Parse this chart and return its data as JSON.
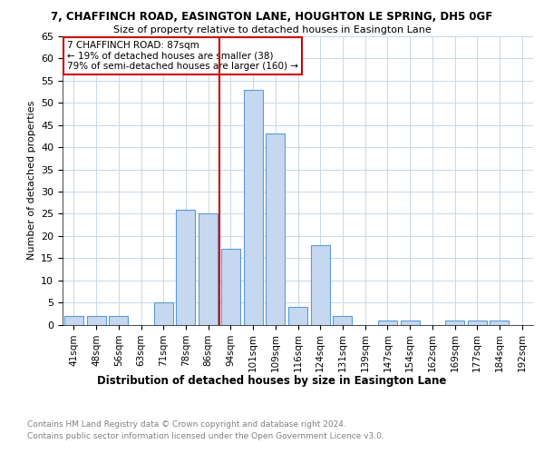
{
  "title": "7, CHAFFINCH ROAD, EASINGTON LANE, HOUGHTON LE SPRING, DH5 0GF",
  "subtitle": "Size of property relative to detached houses in Easington Lane",
  "xlabel": "Distribution of detached houses by size in Easington Lane",
  "ylabel": "Number of detached properties",
  "categories": [
    "41sqm",
    "48sqm",
    "56sqm",
    "63sqm",
    "71sqm",
    "78sqm",
    "86sqm",
    "94sqm",
    "101sqm",
    "109sqm",
    "116sqm",
    "124sqm",
    "131sqm",
    "139sqm",
    "147sqm",
    "154sqm",
    "162sqm",
    "169sqm",
    "177sqm",
    "184sqm",
    "192sqm"
  ],
  "values": [
    2,
    2,
    2,
    0,
    5,
    26,
    25,
    17,
    53,
    43,
    4,
    18,
    2,
    0,
    1,
    1,
    0,
    1,
    1,
    1,
    0
  ],
  "bar_color": "#c5d8f0",
  "bar_edge_color": "#5b9bd5",
  "vline_index": 6,
  "vline_color": "#cc0000",
  "annotation_text": "7 CHAFFINCH ROAD: 87sqm\n← 19% of detached houses are smaller (38)\n79% of semi-detached houses are larger (160) →",
  "annotation_box_edge": "#cc0000",
  "ylim": [
    0,
    65
  ],
  "yticks": [
    0,
    5,
    10,
    15,
    20,
    25,
    30,
    35,
    40,
    45,
    50,
    55,
    60,
    65
  ],
  "footer_line1": "Contains HM Land Registry data © Crown copyright and database right 2024.",
  "footer_line2": "Contains public sector information licensed under the Open Government Licence v3.0.",
  "background_color": "#ffffff",
  "grid_color": "#c8d8e8"
}
